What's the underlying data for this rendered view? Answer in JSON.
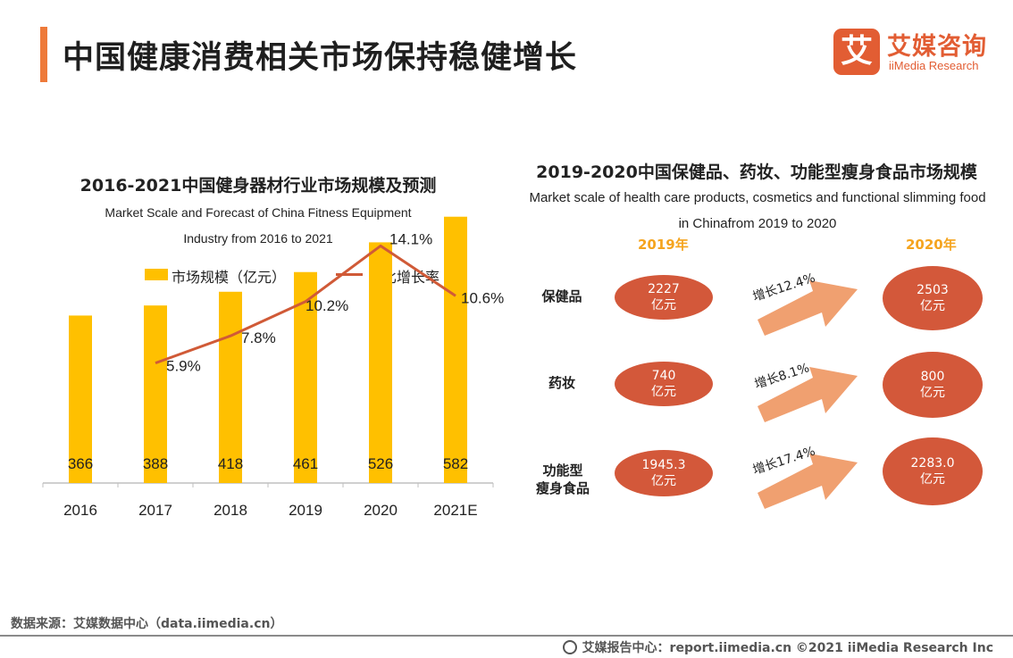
{
  "header": {
    "title": "中国健康消费相关市场保持稳健增长"
  },
  "logo": {
    "mark": "艾",
    "name_cn": "艾媒咨询",
    "name_en": "iiMedia Research"
  },
  "left_chart": {
    "title": "2016-2021中国健身器材行业市场规模及预测",
    "subtitle_line1": "Market Scale and Forecast of China Fitness Equipment",
    "subtitle_line2": "Industry from 2016 to 2021",
    "legend_bar": "市场规模（亿元）",
    "legend_line": "同比增长率"
  },
  "chart_data": {
    "type": "bar",
    "title": "2016-2021中国健身器材行业市场规模及预测",
    "categories": [
      "2016",
      "2017",
      "2018",
      "2019",
      "2020",
      "2021E"
    ],
    "series": [
      {
        "name": "市场规模（亿元）",
        "type": "bar",
        "values": [
          366,
          388,
          418,
          461,
          526,
          582
        ],
        "labels": [
          "366",
          "388",
          "418",
          "461",
          "526",
          "582"
        ]
      },
      {
        "name": "同比增长率",
        "type": "line",
        "values": [
          null,
          5.9,
          7.8,
          10.2,
          14.1,
          10.6
        ],
        "labels": [
          "",
          "5.9%",
          "7.8%",
          "10.2%",
          "14.1%",
          "10.6%"
        ]
      }
    ],
    "xlabel": "",
    "ylabel": "",
    "bar_ylim": [
      0,
      800
    ],
    "line_ylim": [
      0,
      20
    ],
    "grid": false,
    "legend": "top",
    "colors": {
      "bar": "#ffc000",
      "line": "#d05a37",
      "axis": "#bfbfbf"
    }
  },
  "right_panel": {
    "title": "2019-2020中国保健品、药妆、功能型瘦身食品市场规模",
    "subtitle_line1": "Market scale of health care products, cosmetics and functional slimming food",
    "subtitle_line2": "in Chinafrom 2019 to 2020",
    "year_2019": "2019年",
    "year_2020": "2020年",
    "rows": [
      {
        "category": "保健品",
        "v2019": "2227",
        "v2020": "2503",
        "unit": "亿元",
        "growth": "增长12.4%"
      },
      {
        "category": "药妆",
        "v2019": "740",
        "v2020": "800",
        "unit": "亿元",
        "growth": "增长8.1%"
      },
      {
        "category_line1": "功能型",
        "category_line2": "瘦身食品",
        "v2019": "1945.3",
        "v2020": "2283.0",
        "unit": "亿元",
        "growth": "增长17.4%"
      }
    ],
    "colors": {
      "oval": "#d3583a",
      "arrow": "#f0a070",
      "year": "#f5a41e"
    }
  },
  "footer": {
    "source": "数据来源：艾媒数据中心（data.iimedia.cn）",
    "copyright": "艾媒报告中心：report.iimedia.cn ©2021  iiMedia Research  Inc"
  }
}
